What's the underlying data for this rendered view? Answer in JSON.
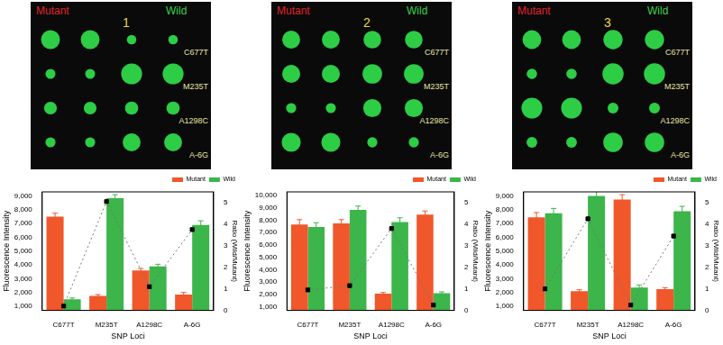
{
  "chart_data": [
    {
      "type": "bar",
      "annotations": [
        "Mutant",
        "Wild",
        "1"
      ],
      "categories": [
        "C677T",
        "M235T",
        "A1298C",
        "A-6G"
      ],
      "x_label": "SNP Loci",
      "y_label": "Fluorescence Intensity",
      "y2_label": "Ratio (Wild/Mutant)",
      "ylim": [
        700,
        9300
      ],
      "yticks": [
        1000,
        2000,
        3000,
        4000,
        5000,
        6000,
        7000,
        8000,
        9000
      ],
      "y2lim": [
        0,
        5.5
      ],
      "y2ticks": [
        0,
        1,
        2,
        3,
        4,
        5
      ],
      "grid": false,
      "legend": "top-right",
      "series": [
        {
          "name": "Mutant",
          "color": "#f0572a",
          "values": [
            7500,
            1750,
            3600,
            1850
          ],
          "errors": [
            250,
            100,
            150,
            150
          ]
        },
        {
          "name": "Wild",
          "color": "#3cb54a",
          "values": [
            1500,
            8850,
            3900,
            6900
          ],
          "errors": [
            100,
            250,
            150,
            300
          ]
        },
        {
          "type": "line",
          "axis": "y2",
          "color": "#000000",
          "marker": "square",
          "line_style": "dotted",
          "values": [
            0.2,
            5.05,
            1.1,
            3.75
          ]
        }
      ]
    },
    {
      "type": "bar",
      "annotations": [
        "Mutant",
        "Wild",
        "2"
      ],
      "categories": [
        "C677T",
        "M235T",
        "A1298C",
        "A-6G"
      ],
      "x_label": "SNP Loci",
      "y_label": "Fluorescence Intensity",
      "y2_label": "Ratio (Wild/Mutant)",
      "ylim": [
        700,
        10300
      ],
      "yticks": [
        1000,
        2000,
        3000,
        4000,
        5000,
        6000,
        7000,
        8000,
        9000,
        10000
      ],
      "y2lim": [
        0,
        5.5
      ],
      "y2ticks": [
        0,
        1,
        2,
        3,
        4,
        5
      ],
      "grid": false,
      "legend": "top-right",
      "series": [
        {
          "name": "Mutant",
          "color": "#f0572a",
          "values": [
            7650,
            7750,
            2050,
            8450
          ],
          "errors": [
            400,
            300,
            100,
            300
          ]
        },
        {
          "name": "Wild",
          "color": "#3cb54a",
          "values": [
            7450,
            8850,
            7850,
            2100
          ],
          "errors": [
            350,
            300,
            350,
            100
          ]
        },
        {
          "type": "line",
          "axis": "y2",
          "color": "#000000",
          "marker": "square",
          "line_style": "dotted",
          "values": [
            0.95,
            1.15,
            3.8,
            0.25
          ]
        }
      ]
    },
    {
      "type": "bar",
      "annotations": [
        "Mutant",
        "Wild",
        "3"
      ],
      "categories": [
        "C677T",
        "M235T",
        "A1298C",
        "A-6G"
      ],
      "x_label": "SNP Loci",
      "y_label": "Fluorescence Intensity",
      "y2_label": "Ratio (Wild/Mutant)",
      "ylim": [
        700,
        9300
      ],
      "yticks": [
        1000,
        2000,
        3000,
        4000,
        5000,
        6000,
        7000,
        8000,
        9000
      ],
      "y2lim": [
        0,
        5.5
      ],
      "y2ticks": [
        0,
        1,
        2,
        3,
        4,
        5
      ],
      "grid": false,
      "legend": "top-right",
      "series": [
        {
          "name": "Mutant",
          "color": "#f0572a",
          "values": [
            7450,
            2100,
            8750,
            2250
          ],
          "errors": [
            350,
            100,
            350,
            100
          ]
        },
        {
          "name": "Wild",
          "color": "#3cb54a",
          "values": [
            7750,
            9000,
            2350,
            7900
          ],
          "errors": [
            350,
            400,
            200,
            350
          ]
        },
        {
          "type": "line",
          "axis": "y2",
          "color": "#000000",
          "marker": "square",
          "line_style": "dotted",
          "values": [
            1.0,
            4.25,
            0.25,
            3.45
          ]
        }
      ]
    }
  ]
}
